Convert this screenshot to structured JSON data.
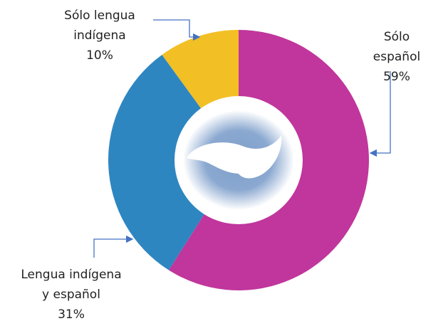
{
  "chart_data": {
    "type": "donut",
    "categories": [
      "Sólo español",
      "Lengua indígena\ny español",
      "Sólo lengua\nindígena"
    ],
    "values": [
      59,
      31,
      10
    ],
    "value_labels": [
      "59%",
      "31%",
      "10%"
    ],
    "colors": [
      "#c0369c",
      "#2e86c1",
      "#f2bf25"
    ]
  }
}
